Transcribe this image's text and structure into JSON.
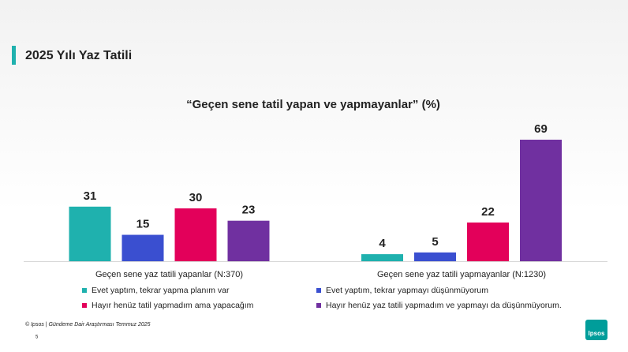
{
  "slide": {
    "title": "2025 Yılı Yaz Tatili",
    "footer": "© Ipsos | Gündeme Dair Araştırması Temmuz 2025",
    "page": "5",
    "logo": "Ipsos"
  },
  "chart_data": {
    "type": "bar",
    "title": "“Geçen sene tatil yapan ve yapmayanlar” (%)",
    "categories": [
      "Geçen sene yaz tatili yapanlar (N:370)",
      "Geçen sene yaz tatili  yapmayanlar (N:1230)"
    ],
    "series": [
      {
        "name": "Evet yaptım, tekrar  yapma planım var",
        "color": "#1fb1ae",
        "values": [
          31,
          4
        ]
      },
      {
        "name": "Evet yaptım, tekrar yapmayı düşünmüyorum",
        "color": "#3a4fd0",
        "values": [
          15,
          5
        ]
      },
      {
        "name": "Hayır henüz tatil yapmadım ama yapacağım",
        "color": "#e3005a",
        "values": [
          30,
          22
        ]
      },
      {
        "name": "Hayır henüz yaz tatili yapmadım ve yapmayı da düşünmüyorum.",
        "color": "#7030a0",
        "values": [
          23,
          69
        ]
      }
    ]
  }
}
